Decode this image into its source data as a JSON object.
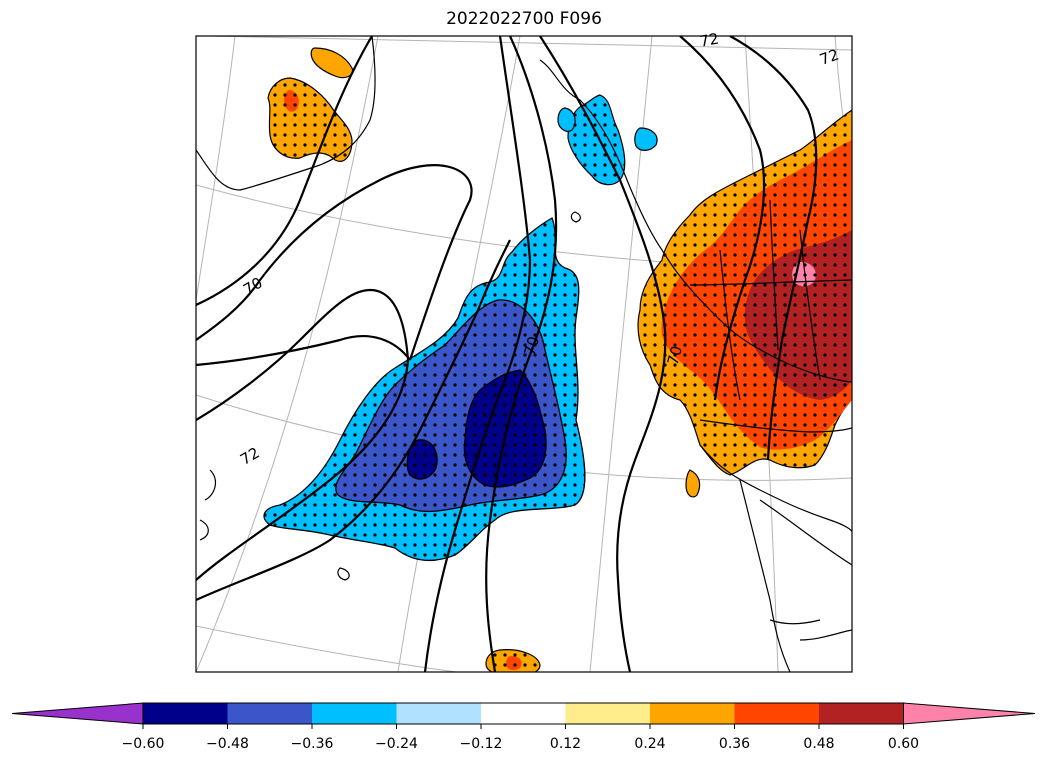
{
  "title": "2022022700 F096",
  "colorbar": {
    "extend": "both",
    "levels": [
      -0.6,
      -0.48,
      -0.36,
      -0.24,
      -0.12,
      0.12,
      0.24,
      0.36,
      0.48,
      0.6
    ],
    "tick_labels": [
      "−0.60",
      "−0.48",
      "−0.36",
      "−0.24",
      "−0.12",
      "0.12",
      "0.24",
      "0.36",
      "0.48",
      "0.60"
    ],
    "colors": [
      "#9932cc",
      "#00008b",
      "#3a56c8",
      "#00bfff",
      "#b0e2ff",
      "#ffffff",
      "#ffec8b",
      "#ffa500",
      "#ff4500",
      "#b22222",
      "#ff82ab"
    ]
  },
  "contour_labels": [
    "70",
    "72",
    "70",
    "70",
    "72",
    "72"
  ],
  "map": {
    "shading": "filled anomaly contours with stippling",
    "stipple_color": "#000000",
    "coastline_color": "#000000",
    "graticule_color": "#b4b4b4"
  }
}
